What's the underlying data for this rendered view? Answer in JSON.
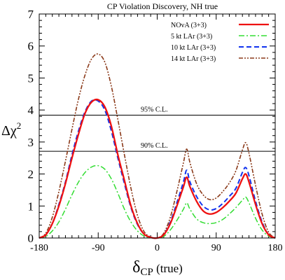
{
  "chart_data": {
    "type": "line",
    "title": "CP Violation Discovery, NH true",
    "xlabel_main": "δ",
    "xlabel_sub": "CP",
    "xlabel_suffix": " (true)",
    "ylabel_main": "Δχ",
    "ylabel_sup": "2",
    "xlim": [
      -180,
      180
    ],
    "ylim": [
      0,
      7
    ],
    "x_ticks": [
      -180,
      -90,
      0,
      90,
      180
    ],
    "y_ticks": [
      0,
      1,
      2,
      3,
      4,
      5,
      6,
      7
    ],
    "x_minor_step": 10,
    "y_minor_step": 0.2,
    "legend_position": "top-right",
    "reference_lines": [
      {
        "label": "95% C.L.",
        "y": 3.84
      },
      {
        "label": "90% C.L.",
        "y": 2.71
      }
    ],
    "x": [
      -180,
      -170,
      -160,
      -150,
      -140,
      -130,
      -120,
      -110,
      -100,
      -90,
      -80,
      -70,
      -60,
      -50,
      -40,
      -30,
      -20,
      -10,
      0,
      10,
      20,
      30,
      40,
      45,
      50,
      60,
      70,
      80,
      90,
      100,
      110,
      120,
      130,
      135,
      140,
      150,
      160,
      170,
      180
    ],
    "series": [
      {
        "name": "NOvA (3+3)",
        "color": "#ee1111",
        "dash": "",
        "width": 2.3,
        "values": [
          0,
          0.1,
          0.45,
          1.0,
          1.7,
          2.5,
          3.25,
          3.9,
          4.25,
          4.32,
          4.1,
          3.5,
          2.6,
          1.8,
          1.0,
          0.45,
          0.12,
          0.02,
          0,
          0.1,
          0.45,
          1.0,
          1.6,
          1.9,
          1.6,
          1.15,
          0.85,
          0.75,
          0.8,
          0.95,
          1.15,
          1.4,
          1.85,
          2.0,
          1.75,
          1.05,
          0.45,
          0.1,
          0
        ]
      },
      {
        "name": "5 kt LAr (3+3)",
        "color": "#33dd33",
        "dash": "8,3,2,3",
        "width": 1.5,
        "values": [
          0,
          0.05,
          0.22,
          0.5,
          0.9,
          1.35,
          1.75,
          2.05,
          2.22,
          2.26,
          2.15,
          1.85,
          1.4,
          0.9,
          0.5,
          0.22,
          0.06,
          0.01,
          0,
          0.05,
          0.25,
          0.55,
          0.9,
          1.1,
          0.9,
          0.6,
          0.48,
          0.45,
          0.48,
          0.58,
          0.75,
          0.95,
          1.18,
          1.28,
          1.1,
          0.62,
          0.25,
          0.06,
          0
        ]
      },
      {
        "name": "10 kt LAr (3+3)",
        "color": "#1133ee",
        "dash": "7,4",
        "width": 2.0,
        "values": [
          0,
          0.1,
          0.45,
          1.05,
          1.75,
          2.6,
          3.35,
          3.95,
          4.28,
          4.28,
          4.0,
          3.35,
          2.5,
          1.7,
          0.95,
          0.42,
          0.12,
          0.02,
          0,
          0.1,
          0.5,
          1.1,
          1.75,
          2.12,
          1.75,
          1.3,
          1.0,
          0.88,
          0.92,
          1.08,
          1.3,
          1.55,
          2.05,
          2.2,
          1.95,
          1.15,
          0.5,
          0.1,
          0
        ]
      },
      {
        "name": "14 kt LAr (3+3)",
        "color": "#8b3a1a",
        "dash": "6,2,2,2,2,2",
        "width": 1.6,
        "values": [
          0,
          0.15,
          0.65,
          1.45,
          2.4,
          3.4,
          4.35,
          5.1,
          5.6,
          5.75,
          5.5,
          4.75,
          3.7,
          2.6,
          1.55,
          0.7,
          0.2,
          0.03,
          0,
          0.15,
          0.65,
          1.45,
          2.35,
          2.78,
          2.35,
          1.7,
          1.35,
          1.2,
          1.25,
          1.45,
          1.72,
          2.1,
          2.75,
          2.98,
          2.65,
          1.65,
          0.75,
          0.18,
          0
        ]
      }
    ]
  }
}
